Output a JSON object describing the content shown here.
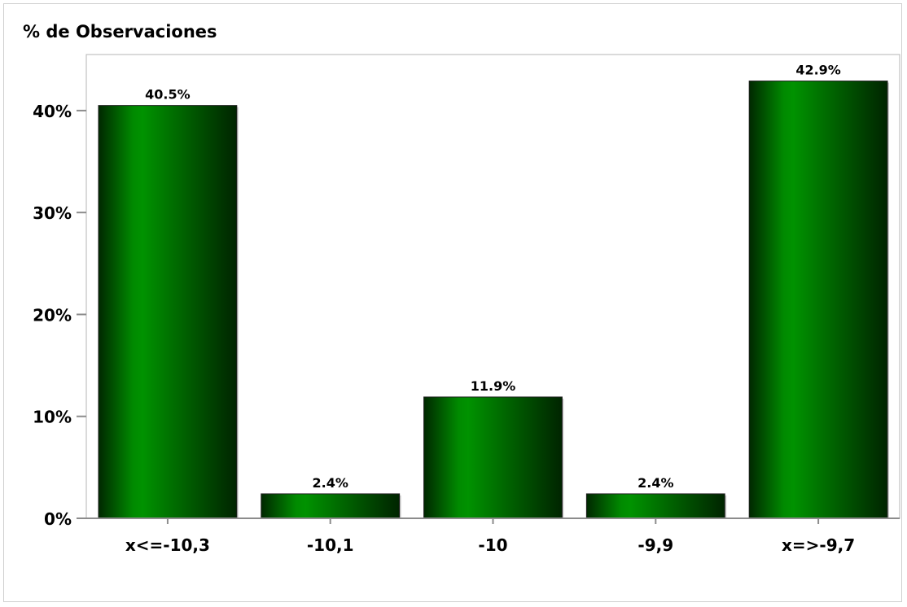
{
  "chart_data": {
    "type": "bar",
    "ylabel": "% de Observaciones",
    "xlabel": "",
    "categories": [
      "x<=-10,3",
      "-10,1",
      "-10",
      "-9,9",
      "x=>-9,7"
    ],
    "values": [
      40.5,
      2.4,
      11.9,
      2.4,
      42.9
    ],
    "value_labels": [
      "40.5%",
      "2.4%",
      "11.9%",
      "2.4%",
      "42.9%"
    ],
    "y_ticks": [
      0,
      10,
      20,
      30,
      40
    ],
    "y_tick_labels": [
      "0%",
      "10%",
      "20%",
      "30%",
      "40%"
    ],
    "ylim": [
      0,
      45.5
    ],
    "grid": false,
    "bar_color": "#008a00",
    "bar_color_dark": "#002e00"
  }
}
